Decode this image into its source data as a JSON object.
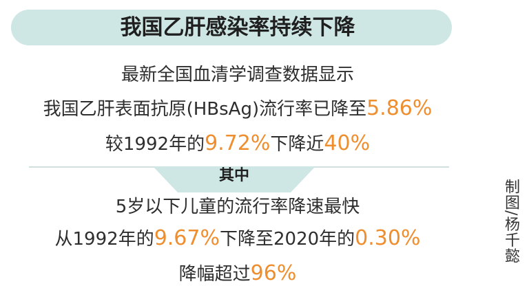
{
  "title": "我国乙肝感染率持续下降",
  "line1": "最新全国血清学调查数据显示",
  "line2": {
    "pre": "我国乙肝表面抗原(HBsAg)流行率已降至",
    "value": "5.86%"
  },
  "line3": {
    "pre": "较1992年的",
    "value1": "9.72%",
    "mid": "下降近",
    "value2": "40%"
  },
  "section_label": "其中",
  "line4": "5岁以下儿童的流行率降速最快",
  "line5": {
    "pre": "从1992年的",
    "value1": "9.67%",
    "mid": "下降至2020年的",
    "value2": "0.30%"
  },
  "line6": {
    "pre": "降幅超过",
    "value": "96%"
  },
  "credit": "制图/杨千懿",
  "colors": {
    "accent": "#ee8e2e",
    "pill": "#cfe7e4",
    "tab": "#cfe7e4"
  }
}
